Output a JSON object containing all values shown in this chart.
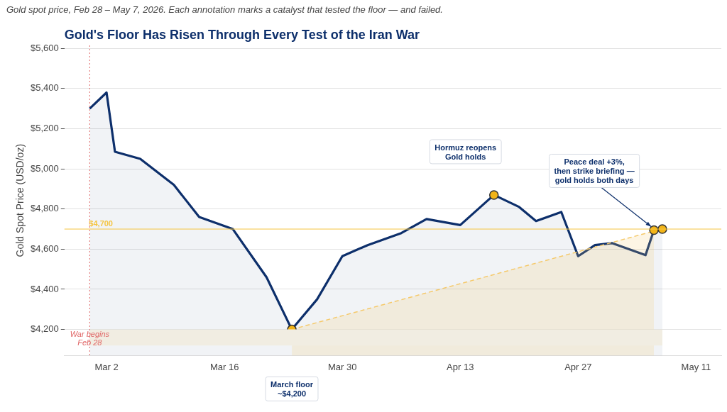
{
  "chart_data": {
    "type": "area",
    "title": "Gold's Floor Has Risen Through Every Test of the Iran War",
    "subtitle": "Gold spot price, Feb 28 – May 7, 2026. Each annotation marks a catalyst that tested the floor — and failed.",
    "ylabel": "Gold Spot Price (USD/oz)",
    "series": [
      {
        "color": "#0d2f6b",
        "x": [
          "2026-02-28",
          "2026-03-02",
          "2026-03-03",
          "2026-03-06",
          "2026-03-10",
          "2026-03-13",
          "2026-03-17",
          "2026-03-21",
          "2026-03-24",
          "2026-03-27",
          "2026-03-30",
          "2026-04-02",
          "2026-04-06",
          "2026-04-09",
          "2026-04-13",
          "2026-04-17",
          "2026-04-20",
          "2026-04-22",
          "2026-04-25",
          "2026-04-27",
          "2026-04-29",
          "2026-05-01",
          "2026-05-05",
          "2026-05-06",
          "2026-05-07"
        ],
        "values": [
          5300,
          5380,
          5085,
          5050,
          4920,
          4760,
          4700,
          4460,
          4200,
          4350,
          4565,
          4620,
          4680,
          4750,
          4720,
          4870,
          4810,
          4740,
          4785,
          4565,
          4620,
          4630,
          4570,
          4695,
          4700
        ]
      },
      {
        "type": "area",
        "color": "#f5c96a",
        "line_style": "dashed",
        "x": [
          "2026-03-24",
          "2026-05-06"
        ],
        "values": [
          4200,
          4690
        ]
      },
      {
        "type": "scatter",
        "color": "#f2b418",
        "marker": "circle",
        "x": [
          "2026-03-24",
          "2026-04-17",
          "2026-05-06",
          "2026-05-07"
        ],
        "values": [
          4200,
          4870,
          4695,
          4700
        ]
      }
    ],
    "xlim": [
      "2026-02-25",
      "2026-05-14"
    ],
    "xticks": [
      {
        "value": "2026-03-02",
        "label": "Mar 2"
      },
      {
        "value": "2026-03-16",
        "label": "Mar 16"
      },
      {
        "value": "2026-03-30",
        "label": "Mar 30"
      },
      {
        "value": "2026-04-13",
        "label": "Apr 13"
      },
      {
        "value": "2026-04-27",
        "label": "Apr 27"
      },
      {
        "value": "2026-05-11",
        "label": "May 11"
      }
    ],
    "ylim": [
      4070,
      5615
    ],
    "yticks": [
      {
        "value": 4200,
        "label": "$4,200"
      },
      {
        "value": 4400,
        "label": "$4,400"
      },
      {
        "value": 4600,
        "label": "$4,600"
      },
      {
        "value": 4800,
        "label": "$4,800"
      },
      {
        "value": 5000,
        "label": "$5,000"
      },
      {
        "value": 5200,
        "label": "$5,200"
      },
      {
        "value": 5400,
        "label": "$5,400"
      },
      {
        "value": 5600,
        "label": "$5,600"
      }
    ],
    "ref_lines": [
      {
        "axis": "x",
        "value": "2026-02-28",
        "label": "War begins\nFeb 28",
        "color": "#e06666",
        "line_style": "dotted"
      },
      {
        "axis": "y",
        "value": 4700,
        "label": "$4,700",
        "color": "#f5c542",
        "line_style": "solid"
      }
    ],
    "bands": [
      {
        "axis": "y",
        "from": 4120,
        "to": 4200,
        "color": "#f1ede2"
      }
    ],
    "annotations": [
      "March floor\n~$4,200",
      "Hormuz reopens\nGold holds",
      {
        "text": "Peace deal +3%,\nthen strike briefing —\ngold holds both days",
        "x": "2026-05-06",
        "y": 4695
      }
    ],
    "grid": "y",
    "legend": false
  }
}
